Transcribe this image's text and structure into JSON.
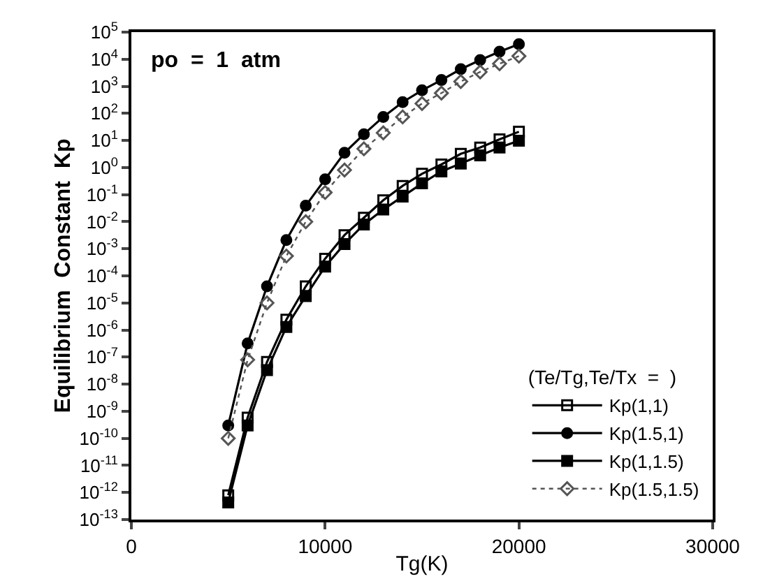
{
  "chart_data": {
    "type": "line",
    "xlabel": "Tg(K)",
    "ylabel": "Equilibrium  Constant  Kp",
    "legend_title": "(Te/Tg,Te/Tx  =  )",
    "annotations": [
      "po  =  1  atm"
    ],
    "x": [
      5000,
      6000,
      7000,
      8000,
      9000,
      10000,
      11000,
      12000,
      13000,
      14000,
      15000,
      16000,
      17000,
      18000,
      19000,
      20000
    ],
    "series": [
      {
        "name": "Kp(1,1)",
        "color": "#000000",
        "marker": "square",
        "line_style": "solid",
        "values": [
          7.9e-13,
          5.8e-10,
          6.6e-08,
          2.4e-06,
          4.1e-05,
          0.00043,
          0.0032,
          0.014,
          0.062,
          0.21,
          0.59,
          1.3,
          3.2,
          5.5,
          11,
          21
        ]
      },
      {
        "name": "Kp(1.5,1)",
        "color": "#000000",
        "marker": "circle",
        "line_style": "solid",
        "values": [
          3e-10,
          3.2e-07,
          4.1e-05,
          0.0021,
          0.039,
          0.37,
          3.5,
          17,
          74,
          260,
          710,
          1700,
          4300,
          9300,
          19000,
          36000
        ]
      },
      {
        "name": "Kp(1,1.5)",
        "color": "#000000",
        "marker": "square",
        "line_style": "solid",
        "values": [
          4.3e-13,
          3e-10,
          3.3e-08,
          1.3e-06,
          1.8e-05,
          0.00022,
          0.0015,
          0.0079,
          0.028,
          0.085,
          0.26,
          0.72,
          1.4,
          2.8,
          5.5,
          9.8
        ]
      },
      {
        "name": "Kp(1.5,1.5)",
        "color": "#555555",
        "marker": "diamond",
        "line_style": "dotted",
        "values": [
          1e-10,
          7.9e-08,
          1e-05,
          0.00054,
          0.01,
          0.12,
          0.81,
          4.9,
          19,
          74,
          230,
          560,
          1500,
          3400,
          6800,
          13000
        ]
      }
    ],
    "xlim": [
      0,
      30000
    ],
    "xticks": [
      0,
      10000,
      20000,
      30000
    ],
    "ylim": [
      1e-13,
      100000.0
    ],
    "log": "y",
    "yticks": [
      {
        "value": 100000.0,
        "label": "10$^{5}$"
      },
      {
        "value": 10000.0,
        "label": "10$^{4}$"
      },
      {
        "value": 1000.0,
        "label": "10$^{3}$"
      },
      {
        "value": 100.0,
        "label": "10$^{2}$"
      },
      {
        "value": 10.0,
        "label": "10$^{1}$"
      },
      {
        "value": 1,
        "label": "10$^{0}$"
      },
      {
        "value": 0.1,
        "label": "10$^{-1}$"
      },
      {
        "value": 0.01,
        "label": "10$^{-2}$"
      },
      {
        "value": 0.001,
        "label": "10$^{-3}$"
      },
      {
        "value": 0.0001,
        "label": "10$^{-4}$"
      },
      {
        "value": 1e-05,
        "label": "10$^{-5}$"
      },
      {
        "value": 1e-06,
        "label": "10$^{-6}$"
      },
      {
        "value": 1e-07,
        "label": "10$^{-7}$"
      },
      {
        "value": 1e-08,
        "label": "10$^{-8}$"
      },
      {
        "value": 1e-09,
        "label": "10$^{-9}$"
      },
      {
        "value": 1e-10,
        "label": "10$^{-10}$"
      },
      {
        "value": 1e-11,
        "label": "10$^{-11}$"
      },
      {
        "value": 1e-12,
        "label": "10$^{-12}$"
      },
      {
        "value": 1e-13,
        "label": "10$^{-13}$"
      }
    ],
    "legend": "bottom right"
  }
}
